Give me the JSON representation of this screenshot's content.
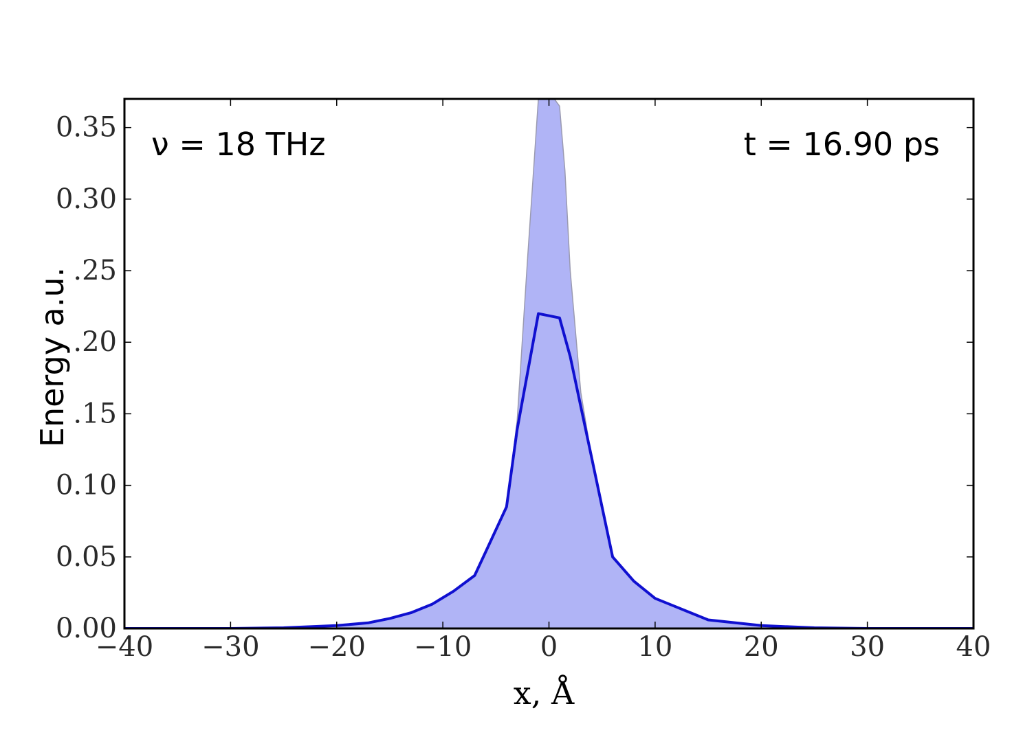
{
  "chart_data": {
    "type": "area",
    "xlabel": "x, Å",
    "ylabel": "Energy a.u.",
    "xlim": [
      -40,
      40
    ],
    "ylim": [
      0,
      0.37
    ],
    "xticks": [
      -40,
      -30,
      -20,
      -10,
      0,
      10,
      20,
      30,
      40
    ],
    "xtick_labels": [
      "−40",
      "−30",
      "−20",
      "−10",
      "0",
      "10",
      "20",
      "30",
      "40"
    ],
    "yticks": [
      0,
      0.05,
      0.1,
      0.15,
      0.2,
      0.25,
      0.3,
      0.35
    ],
    "ytick_labels": [
      "0.00",
      "0.05",
      "0.10",
      "0.15",
      "0.20",
      "0.25",
      "0.30",
      "0.35"
    ],
    "grid": false,
    "annotations": [
      "ν = 18 THz",
      "t = 16.90 ps"
    ],
    "colors": {
      "line": "#1010d0",
      "fill": "#b0b4f6",
      "fill_edge": "#9a9ab0",
      "axes": "#000000"
    },
    "series": [
      {
        "style": "line",
        "x": [
          -40,
          -30,
          -25,
          -20,
          -17,
          -15,
          -13,
          -11,
          -9,
          -7,
          -6,
          -4,
          -3,
          -1,
          1,
          2,
          3,
          4,
          5,
          6,
          8,
          10,
          12,
          15,
          20,
          25,
          30,
          40
        ],
        "values": [
          0.0,
          0.0,
          0.0005,
          0.002,
          0.004,
          0.007,
          0.011,
          0.017,
          0.026,
          0.037,
          0.053,
          0.085,
          0.139,
          0.22,
          0.217,
          0.19,
          0.155,
          0.12,
          0.085,
          0.05,
          0.033,
          0.021,
          0.015,
          0.006,
          0.002,
          0.0005,
          0.0,
          0.0
        ]
      },
      {
        "style": "area",
        "x": [
          -40,
          -30,
          -25,
          -20,
          -17,
          -15,
          -13,
          -11,
          -9,
          -7,
          -6,
          -4,
          -3,
          -2,
          -1,
          -0.5,
          0,
          0.5,
          1,
          1.5,
          2,
          3,
          4,
          5,
          6,
          8,
          10,
          12,
          15,
          20,
          25,
          30,
          40
        ],
        "values": [
          0.0,
          0.0,
          0.0005,
          0.002,
          0.004,
          0.007,
          0.011,
          0.017,
          0.026,
          0.037,
          0.053,
          0.085,
          0.145,
          0.26,
          0.37,
          0.37,
          0.37,
          0.37,
          0.365,
          0.32,
          0.25,
          0.165,
          0.12,
          0.085,
          0.05,
          0.033,
          0.021,
          0.015,
          0.006,
          0.002,
          0.0005,
          0.0,
          0.0
        ]
      }
    ]
  }
}
